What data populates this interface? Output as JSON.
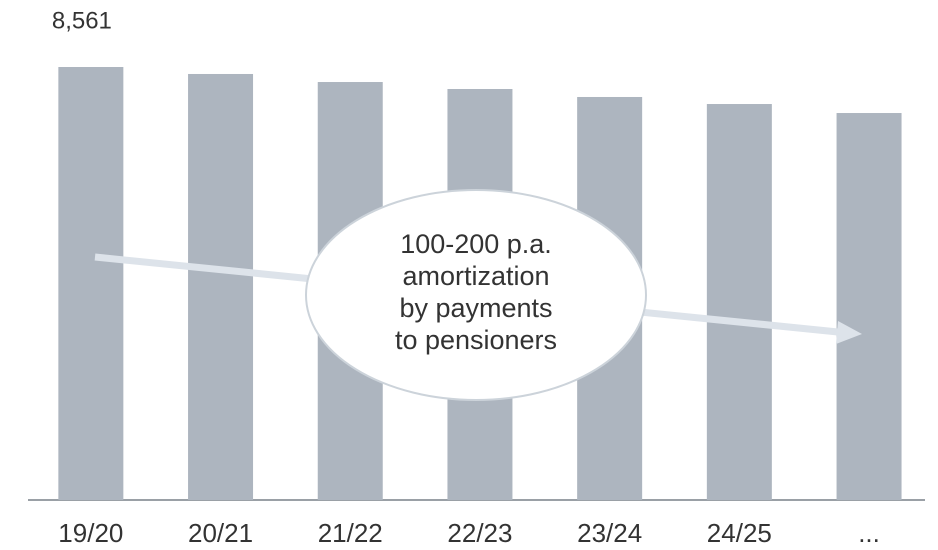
{
  "chart_data": {
    "type": "bar",
    "categories": [
      "19/20",
      "20/21",
      "21/22",
      "22/23",
      "23/24",
      "24/25",
      "..."
    ],
    "values": [
      8561,
      8423,
      8264,
      8126,
      7968,
      7829,
      7651
    ],
    "value_labels": [
      "8,561",
      null,
      null,
      null,
      null,
      null,
      null
    ],
    "color": "#adb5bf",
    "annotation": [
      "100-200 p.a.",
      "amortization",
      "by payments",
      "to pensioners"
    ]
  }
}
